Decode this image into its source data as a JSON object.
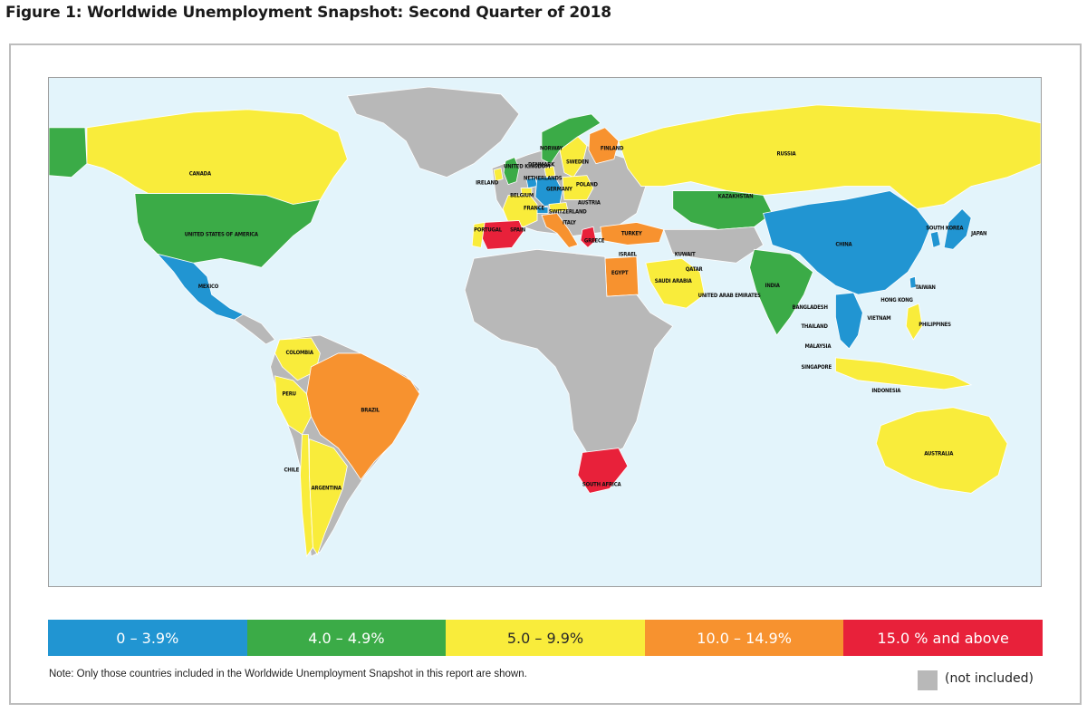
{
  "figure": {
    "title": "Figure 1: Worldwide Unemployment Snapshot: Second Quarter of 2018"
  },
  "colors": {
    "ocean": "#e3f4fb",
    "not_included": "#b8b8b8",
    "bin_0": "#2195d2",
    "bin_1": "#3bab47",
    "bin_2": "#f9ec3b",
    "bin_3": "#f7922f",
    "bin_4": "#e8213a"
  },
  "legend": {
    "items": [
      {
        "label": "0 – 3.9%",
        "color": "#2195d2"
      },
      {
        "label": "4.0 – 4.9%",
        "color": "#3bab47"
      },
      {
        "label": "5.0 – 9.9%",
        "color": "#f9ec3b"
      },
      {
        "label": "10.0 – 14.9%",
        "color": "#f7922f"
      },
      {
        "label": "15.0 % and above",
        "color": "#e8213a"
      }
    ],
    "not_included_label": "(not included)"
  },
  "note": "Note:  Only those countries included in the Worldwide Unemployment Snapshot in this report are shown.",
  "countries": [
    {
      "name": "CANADA",
      "bin": "5.0 – 9.9%"
    },
    {
      "name": "UNITED STATES OF AMERICA",
      "bin": "4.0 – 4.9%"
    },
    {
      "name": "MEXICO",
      "bin": "0 – 3.9%"
    },
    {
      "name": "COLOMBIA",
      "bin": "5.0 – 9.9%"
    },
    {
      "name": "PERU",
      "bin": "5.0 – 9.9%"
    },
    {
      "name": "BRAZIL",
      "bin": "10.0 – 14.9%"
    },
    {
      "name": "CHILE",
      "bin": "5.0 – 9.9%"
    },
    {
      "name": "ARGENTINA",
      "bin": "5.0 – 9.9%"
    },
    {
      "name": "IRELAND",
      "bin": "5.0 – 9.9%"
    },
    {
      "name": "UNITED KINGDOM",
      "bin": "4.0 – 4.9%"
    },
    {
      "name": "NORWAY",
      "bin": "4.0 – 4.9%"
    },
    {
      "name": "SWEDEN",
      "bin": "5.0 – 9.9%"
    },
    {
      "name": "FINLAND",
      "bin": "10.0 – 14.9%"
    },
    {
      "name": "DENMARK",
      "bin": "5.0 – 9.9%"
    },
    {
      "name": "NETHERLANDS",
      "bin": "0 – 3.9%"
    },
    {
      "name": "GERMANY",
      "bin": "0 – 3.9%"
    },
    {
      "name": "BELGIUM",
      "bin": "5.0 – 9.9%"
    },
    {
      "name": "POLAND",
      "bin": "5.0 – 9.9%"
    },
    {
      "name": "AUSTRIA",
      "bin": "5.0 – 9.9%"
    },
    {
      "name": "SWITZERLAND",
      "bin": "0 – 3.9%"
    },
    {
      "name": "FRANCE",
      "bin": "5.0 – 9.9%"
    },
    {
      "name": "ITALY",
      "bin": "10.0 – 14.9%"
    },
    {
      "name": "PORTUGAL",
      "bin": "5.0 – 9.9%"
    },
    {
      "name": "SPAIN",
      "bin": "15.0 % and above"
    },
    {
      "name": "GREECE",
      "bin": "15.0 % and above"
    },
    {
      "name": "TURKEY",
      "bin": "10.0 – 14.9%"
    },
    {
      "name": "ISRAEL",
      "bin": "4.0 – 4.9%"
    },
    {
      "name": "EGYPT",
      "bin": "10.0 – 14.9%"
    },
    {
      "name": "KUWAIT",
      "bin": "0 – 3.9%"
    },
    {
      "name": "QATAR",
      "bin": "0 – 3.9%"
    },
    {
      "name": "SAUDI ARABIA",
      "bin": "5.0 – 9.9%"
    },
    {
      "name": "UNITED ARAB EMIRATES",
      "bin": "0 – 3.9%"
    },
    {
      "name": "SOUTH AFRICA",
      "bin": "15.0 % and above"
    },
    {
      "name": "RUSSIA",
      "bin": "5.0 – 9.9%"
    },
    {
      "name": "KAZAKHSTAN",
      "bin": "4.0 – 4.9%"
    },
    {
      "name": "INDIA",
      "bin": "4.0 – 4.9%"
    },
    {
      "name": "CHINA",
      "bin": "0 – 3.9%"
    },
    {
      "name": "SOUTH KOREA",
      "bin": "0 – 3.9%"
    },
    {
      "name": "JAPAN",
      "bin": "0 – 3.9%"
    },
    {
      "name": "TAIWAN",
      "bin": "0 – 3.9%"
    },
    {
      "name": "HONG KONG",
      "bin": "0 – 3.9%"
    },
    {
      "name": "BANGLADESH",
      "bin": "0 – 3.9%"
    },
    {
      "name": "THAILAND",
      "bin": "0 – 3.9%"
    },
    {
      "name": "VIETNAM",
      "bin": "0 – 3.9%"
    },
    {
      "name": "PHILIPPINES",
      "bin": "5.0 – 9.9%"
    },
    {
      "name": "MALAYSIA",
      "bin": "0 – 3.9%"
    },
    {
      "name": "SINGAPORE",
      "bin": "0 – 3.9%"
    },
    {
      "name": "INDONESIA",
      "bin": "5.0 – 9.9%"
    },
    {
      "name": "AUSTRALIA",
      "bin": "5.0 – 9.9%"
    }
  ]
}
